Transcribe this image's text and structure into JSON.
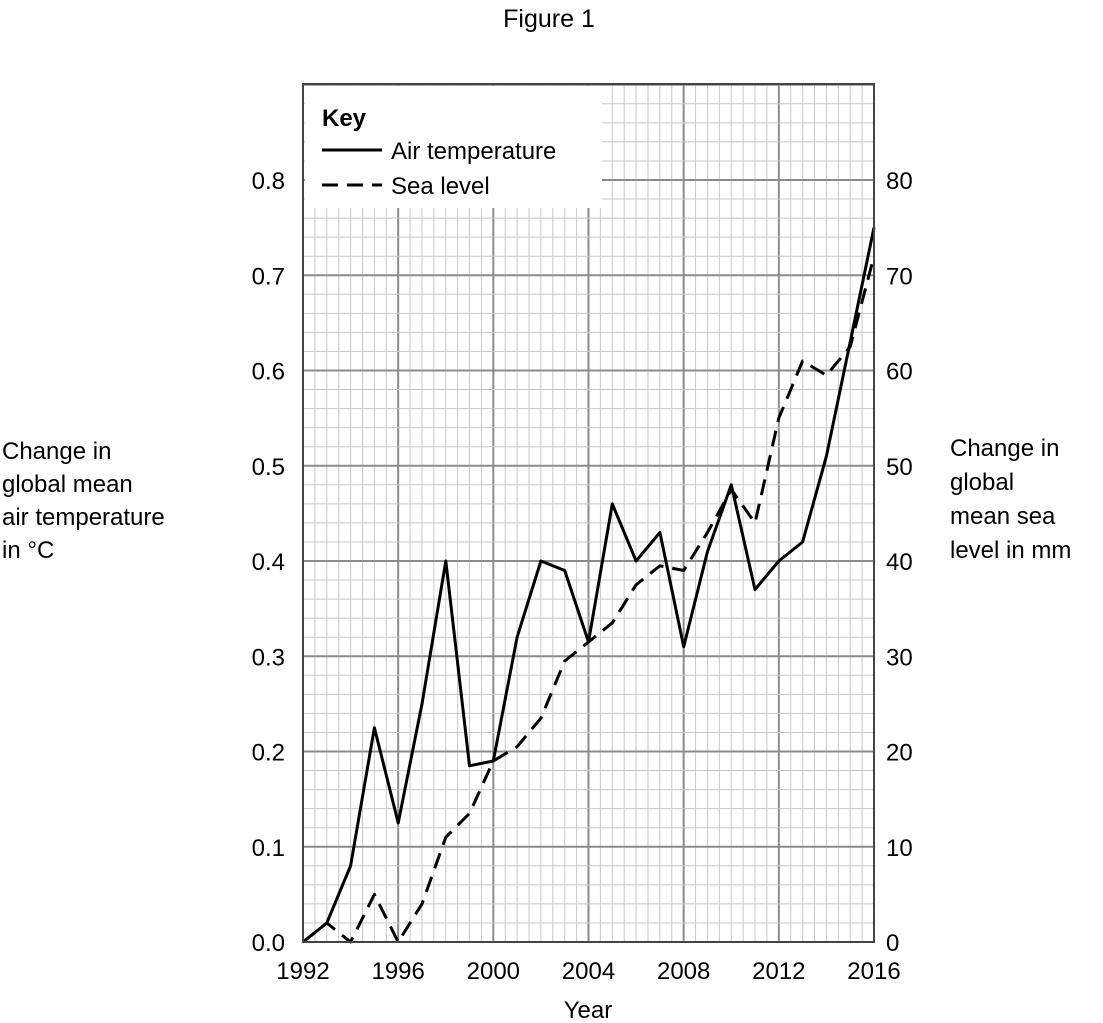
{
  "figure_title": "Figure 1",
  "chart_data": {
    "type": "line",
    "title": "Figure 1",
    "xlabel": "Year",
    "ylabel_left": [
      "Change in",
      "global mean",
      "air temperature",
      "in °C"
    ],
    "ylabel_right": [
      "Change in",
      "global",
      "mean sea",
      "level in mm"
    ],
    "xlim": [
      1992,
      2016
    ],
    "ylim_left": [
      0,
      0.8
    ],
    "ylim_right": [
      0,
      80
    ],
    "x_ticks": [
      "1992",
      "1996",
      "2000",
      "2004",
      "2008",
      "2012",
      "2016"
    ],
    "y_ticks_left": [
      "0.0",
      "0.1",
      "0.2",
      "0.3",
      "0.4",
      "0.5",
      "0.6",
      "0.7",
      "0.8"
    ],
    "y_ticks_right": [
      "0",
      "10",
      "20",
      "30",
      "40",
      "50",
      "60",
      "70",
      "80"
    ],
    "grid": true,
    "legend": {
      "title": "Key",
      "placement": "top-left",
      "entries": [
        "Air temperature",
        "Sea level"
      ]
    },
    "series": [
      {
        "name": "Air temperature",
        "axis": "left",
        "style": "solid",
        "x": [
          1992,
          1993,
          1994,
          1995,
          1996,
          1997,
          1998,
          1999,
          2000,
          2001,
          2002,
          2003,
          2004,
          2005,
          2006,
          2007,
          2008,
          2009,
          2010,
          2011,
          2012,
          2013,
          2014,
          2015,
          2016
        ],
        "values": [
          0.0,
          0.02,
          0.08,
          0.225,
          0.125,
          0.25,
          0.4,
          0.185,
          0.19,
          0.32,
          0.4,
          0.39,
          0.315,
          0.46,
          0.4,
          0.43,
          0.31,
          0.41,
          0.48,
          0.37,
          0.4,
          0.42,
          0.51,
          0.63,
          0.75
        ]
      },
      {
        "name": "Sea level",
        "axis": "right",
        "style": "dashed",
        "x": [
          1992,
          1993,
          1994,
          1995,
          1996,
          1997,
          1998,
          1999,
          2000,
          2001,
          2002,
          2003,
          2004,
          2005,
          2006,
          2007,
          2008,
          2009,
          2010,
          2011,
          2012,
          2013,
          2014,
          2015,
          2016
        ],
        "values": [
          0,
          2,
          0,
          5,
          0,
          4,
          11,
          13.5,
          19,
          20.5,
          23.5,
          29.5,
          31.5,
          33.5,
          37.5,
          39.5,
          39,
          43,
          47.5,
          44,
          55,
          61,
          59.5,
          62.5,
          72
        ]
      }
    ]
  }
}
